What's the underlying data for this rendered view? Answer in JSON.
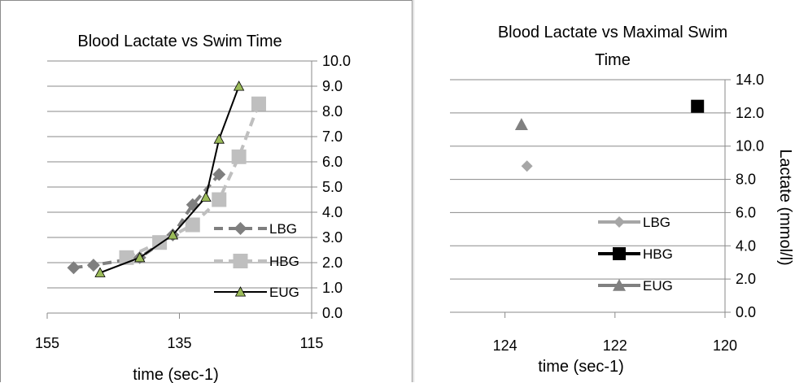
{
  "chart_data": [
    {
      "type": "line",
      "title": "Blood Lactate vs Swim Time",
      "xlabel": "time (sec-1)",
      "ylabel": "",
      "x_reversed": true,
      "xlim": [
        155,
        115
      ],
      "ylim": [
        0,
        10
      ],
      "x_ticks": [
        "155",
        "135",
        "115"
      ],
      "y_ticks": [
        "0.0",
        "1.0",
        "2.0",
        "3.0",
        "4.0",
        "5.0",
        "6.0",
        "7.0",
        "8.0",
        "9.0",
        "10.0"
      ],
      "y_axis_side": "right",
      "grid": true,
      "legend_position": "bottom-right",
      "series": [
        {
          "name": "LBG",
          "color": "#7f7f7f",
          "marker": "diamond",
          "line": "dashed",
          "x": [
            151,
            148,
            141,
            136,
            133,
            129
          ],
          "y": [
            1.8,
            1.9,
            2.2,
            3.1,
            4.3,
            5.5
          ]
        },
        {
          "name": "HBG",
          "color": "#bfbfbf",
          "marker": "square",
          "line": "dashed",
          "x": [
            143,
            138,
            133,
            129,
            126,
            123
          ],
          "y": [
            2.2,
            2.8,
            3.5,
            4.5,
            6.2,
            8.3
          ]
        },
        {
          "name": "EUG",
          "color": "#000000",
          "marker": "triangle",
          "marker_color": "#9bbb59",
          "line": "solid",
          "x": [
            147,
            141,
            136,
            131,
            129,
            126
          ],
          "y": [
            1.6,
            2.2,
            3.1,
            4.6,
            6.9,
            9.0
          ]
        }
      ]
    },
    {
      "type": "scatter",
      "title": "Blood Lactate vs  Maximal Swim Time",
      "xlabel": "time (sec-1)",
      "ylabel": "Lactate (mmol/l)",
      "x_reversed": true,
      "xlim": [
        125,
        120
      ],
      "ylim": [
        0,
        14
      ],
      "x_ticks": [
        "124",
        "122",
        "120"
      ],
      "y_ticks": [
        "0.0",
        "2.0",
        "4.0",
        "6.0",
        "8.0",
        "10.0",
        "12.0",
        "14.0"
      ],
      "y_axis_side": "right",
      "grid": true,
      "legend_position": "bottom-right",
      "series": [
        {
          "name": "LBG",
          "color": "#a6a6a6",
          "marker": "diamond",
          "x": [
            123.6
          ],
          "y": [
            8.8
          ]
        },
        {
          "name": "HBG",
          "color": "#000000",
          "marker": "square",
          "x": [
            120.5
          ],
          "y": [
            12.4
          ]
        },
        {
          "name": "EUG",
          "color": "#808080",
          "marker": "triangle",
          "x": [
            123.7
          ],
          "y": [
            11.3
          ]
        }
      ]
    }
  ]
}
